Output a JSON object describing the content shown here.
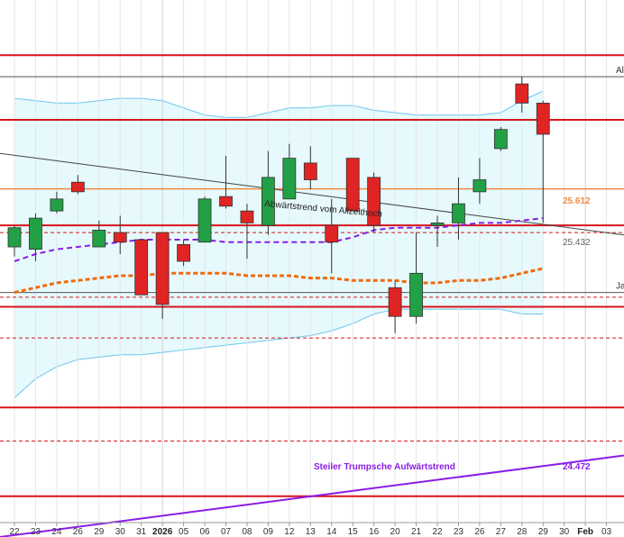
{
  "chart_data": {
    "type": "candlestick",
    "colors": {
      "up": "#22a045",
      "down": "#e02424",
      "resistance": "#d8141c",
      "band_fill": "#e6f9fc",
      "band_line": "#6cc6ee",
      "ma_fast": "#8a1ce8",
      "ma_slow": "#ef6a10",
      "trend_purple": "#8a1ce8",
      "orange_level": "#ef8a40"
    },
    "x_tick_labels": [
      "22",
      "23",
      "24",
      "26",
      "29",
      "30",
      "31",
      "2026",
      "05",
      "06",
      "07",
      "08",
      "09",
      "12",
      "13",
      "14",
      "15",
      "16",
      "20",
      "21",
      "22",
      "23",
      "26",
      "27",
      "28",
      "29",
      "30",
      "Feb",
      "03"
    ],
    "bold_tick_labels": [
      "2026",
      "Feb"
    ],
    "candles": [
      {
        "o": 25.37,
        "h": 25.46,
        "l": 25.33,
        "c": 25.45
      },
      {
        "o": 25.36,
        "h": 25.51,
        "l": 25.31,
        "c": 25.49
      },
      {
        "o": 25.52,
        "h": 25.6,
        "l": 25.51,
        "c": 25.57
      },
      {
        "o": 25.64,
        "h": 25.67,
        "l": 25.59,
        "c": 25.6
      },
      {
        "o": 25.37,
        "h": 25.48,
        "l": 25.38,
        "c": 25.44
      },
      {
        "o": 25.43,
        "h": 25.5,
        "l": 25.34,
        "c": 25.39
      },
      {
        "o": 25.4,
        "h": 25.4,
        "l": 25.17,
        "c": 25.17
      },
      {
        "o": 25.43,
        "h": 25.43,
        "l": 25.07,
        "c": 25.13
      },
      {
        "o": 25.38,
        "h": 25.4,
        "l": 25.29,
        "c": 25.31
      },
      {
        "o": 25.39,
        "h": 25.58,
        "l": 25.39,
        "c": 25.57
      },
      {
        "o": 25.58,
        "h": 25.75,
        "l": 25.53,
        "c": 25.54
      },
      {
        "o": 25.52,
        "h": 25.55,
        "l": 25.32,
        "c": 25.47
      },
      {
        "o": 25.46,
        "h": 25.77,
        "l": 25.42,
        "c": 25.66
      },
      {
        "o": 25.57,
        "h": 25.8,
        "l": 25.59,
        "c": 25.74
      },
      {
        "o": 25.72,
        "h": 25.79,
        "l": 25.61,
        "c": 25.65
      },
      {
        "o": 25.46,
        "h": 25.57,
        "l": 25.26,
        "c": 25.39
      },
      {
        "o": 25.74,
        "h": 25.73,
        "l": 25.52,
        "c": 25.52
      },
      {
        "o": 25.66,
        "h": 25.68,
        "l": 25.43,
        "c": 25.46
      },
      {
        "o": 25.2,
        "h": 25.23,
        "l": 25.01,
        "c": 25.08
      },
      {
        "o": 25.08,
        "h": 25.43,
        "l": 25.05,
        "c": 25.26
      },
      {
        "o": 25.46,
        "h": 25.5,
        "l": 25.37,
        "c": 25.47
      },
      {
        "o": 25.47,
        "h": 25.66,
        "l": 25.4,
        "c": 25.55
      },
      {
        "o": 25.6,
        "h": 25.74,
        "l": 25.55,
        "c": 25.65
      },
      {
        "o": 25.78,
        "h": 25.87,
        "l": 25.77,
        "c": 25.86
      },
      {
        "o": 26.05,
        "h": 26.08,
        "l": 25.93,
        "c": 25.97
      },
      {
        "o": 25.97,
        "h": 25.98,
        "l": 25.47,
        "c": 25.84
      }
    ],
    "horizontal_levels": [
      {
        "value": 26.17,
        "style": "solid",
        "color": "resistance"
      },
      {
        "value": 25.9,
        "style": "solid",
        "color": "resistance"
      },
      {
        "value": 25.46,
        "style": "solid",
        "color": "resistance"
      },
      {
        "value": 25.12,
        "style": "solid",
        "color": "resistance"
      },
      {
        "value": 24.7,
        "style": "solid",
        "color": "resistance"
      },
      {
        "value": 24.33,
        "style": "solid",
        "color": "resistance"
      },
      {
        "value": 25.43,
        "style": "dashed",
        "color": "resistance"
      },
      {
        "value": 25.16,
        "style": "dashed",
        "color": "resistance"
      },
      {
        "value": 24.99,
        "style": "dashed",
        "color": "resistance"
      },
      {
        "value": 24.56,
        "style": "dashed",
        "color": "resistance"
      },
      {
        "value": 26.08,
        "style": "solid",
        "color": "#555555",
        "label": "All"
      },
      {
        "value": 25.18,
        "style": "solid",
        "color": "#555555",
        "label": "Ja"
      }
    ],
    "orange_level": {
      "value": 25.612,
      "label": "25.612"
    },
    "downtrend": {
      "start": 25.76,
      "end": 25.42,
      "label": "Abwärtstrend vom Allzeithoch",
      "end_label": "25.432"
    },
    "uptrend": {
      "start": 24.16,
      "end": 24.5,
      "label": "Steiler Trumpsche Aufwärtstrend",
      "end_label": "24.472"
    },
    "bollinger_upper": [
      25.99,
      25.98,
      25.97,
      25.97,
      25.98,
      25.99,
      25.99,
      25.98,
      25.95,
      25.92,
      25.91,
      25.91,
      25.93,
      25.95,
      25.95,
      25.96,
      25.96,
      25.94,
      25.93,
      25.92,
      25.92,
      25.92,
      25.92,
      25.93,
      25.98,
      26.02
    ],
    "bollinger_lower": [
      24.74,
      24.82,
      24.87,
      24.9,
      24.91,
      24.92,
      24.92,
      24.93,
      24.94,
      24.95,
      24.96,
      24.97,
      24.98,
      24.99,
      25.0,
      25.02,
      25.05,
      25.09,
      25.11,
      25.11,
      25.11,
      25.11,
      25.11,
      25.11,
      25.09,
      25.09
    ],
    "ma_fast": [
      25.31,
      25.34,
      25.36,
      25.37,
      25.38,
      25.39,
      25.4,
      25.4,
      25.4,
      25.4,
      25.39,
      25.39,
      25.39,
      25.39,
      25.39,
      25.39,
      25.41,
      25.44,
      25.45,
      25.45,
      25.45,
      25.46,
      25.47,
      25.47,
      25.48,
      25.49
    ],
    "ma_slow": [
      25.18,
      25.2,
      25.22,
      25.23,
      25.24,
      25.25,
      25.25,
      25.26,
      25.26,
      25.26,
      25.26,
      25.25,
      25.25,
      25.25,
      25.24,
      25.24,
      25.23,
      25.23,
      25.23,
      25.22,
      25.22,
      25.23,
      25.23,
      25.24,
      25.26,
      25.28
    ],
    "ylim": [
      24.22,
      26.4
    ]
  }
}
